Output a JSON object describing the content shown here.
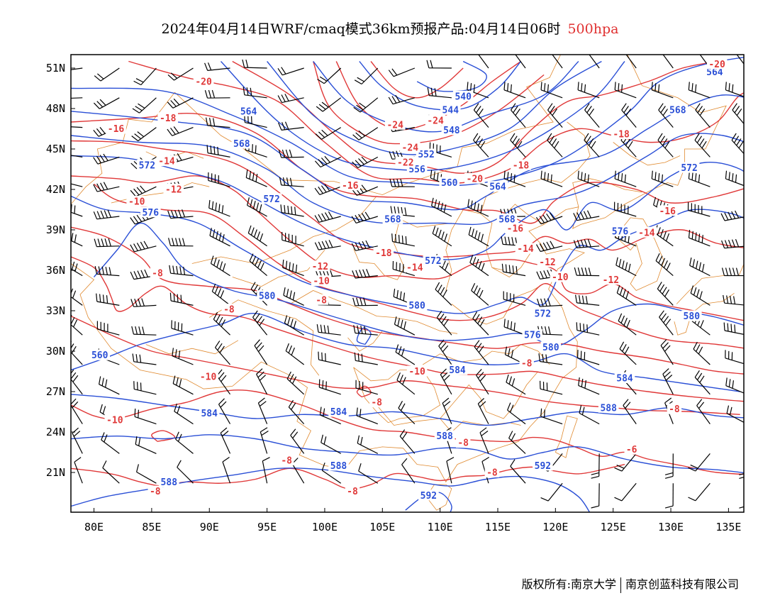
{
  "header": {
    "title": "2024年04月14日WRF/cmaq模式36km预报产品:04月14日06时",
    "level": "500hpa",
    "level_color": "#e03030"
  },
  "map": {
    "lon_labels": [
      "80E",
      "85E",
      "90E",
      "95E",
      "100E",
      "105E",
      "110E",
      "115E",
      "120E",
      "125E",
      "130E",
      "135E"
    ],
    "lat_labels": [
      "51N",
      "48N",
      "45N",
      "42N",
      "39N",
      "36N",
      "33N",
      "30N",
      "27N",
      "24N",
      "21N"
    ],
    "geopotential_color": "#2a4fd6",
    "temperature_color": "#e03838",
    "boundary_color": "#e08a30",
    "wind_color": "#000000",
    "geopotential_contours": [
      {
        "value": "540",
        "label_lon": 112.0,
        "label_lat": 48.9
      },
      {
        "value": "544",
        "label_lon": 110.9,
        "label_lat": 47.9
      },
      {
        "value": "548",
        "label_lon": 111.0,
        "label_lat": 46.4
      },
      {
        "value": "552",
        "label_lon": 108.8,
        "label_lat": 44.6
      },
      {
        "value": "556",
        "label_lon": 108.0,
        "label_lat": 43.5
      },
      {
        "value": "560",
        "label_lon": 110.8,
        "label_lat": 42.5
      },
      {
        "value": "564",
        "label_lon": 93.4,
        "label_lat": 47.8
      },
      {
        "value": "568",
        "label_lon": 92.8,
        "label_lat": 45.4
      },
      {
        "value": "572",
        "label_lon": 84.6,
        "label_lat": 43.8
      },
      {
        "value": "576",
        "label_lon": 84.9,
        "label_lat": 40.3
      },
      {
        "value": "580",
        "label_lon": 95.0,
        "label_lat": 34.1
      },
      {
        "value": "584",
        "label_lon": 90.0,
        "label_lat": 25.4
      },
      {
        "value": "588",
        "label_lon": 86.5,
        "label_lat": 20.3
      },
      {
        "value": "592",
        "label_lon": 109.0,
        "label_lat": 19.3
      }
    ],
    "extra_geopotential_labels": [
      {
        "value": "564",
        "lon": 133.8,
        "lat": 50.7
      },
      {
        "value": "568",
        "lon": 130.6,
        "lat": 47.9
      },
      {
        "value": "572",
        "lon": 131.6,
        "lat": 43.6
      },
      {
        "value": "576",
        "lon": 125.6,
        "lat": 38.9
      },
      {
        "value": "580",
        "lon": 131.8,
        "lat": 32.6
      },
      {
        "value": "584",
        "lon": 126.0,
        "lat": 28.0
      },
      {
        "value": "588",
        "lon": 124.6,
        "lat": 25.8
      },
      {
        "value": "592",
        "lon": 118.9,
        "lat": 21.5
      },
      {
        "value": "572",
        "lon": 95.4,
        "lat": 41.3
      },
      {
        "value": "568",
        "lon": 105.9,
        "lat": 39.8
      },
      {
        "value": "564",
        "lon": 115.0,
        "lat": 42.2
      },
      {
        "value": "568",
        "lon": 115.8,
        "lat": 39.8
      },
      {
        "value": "572",
        "lon": 109.4,
        "lat": 36.7
      },
      {
        "value": "572",
        "lon": 118.9,
        "lat": 32.8
      },
      {
        "value": "576",
        "lon": 118.0,
        "lat": 31.2
      },
      {
        "value": "580",
        "lon": 108.0,
        "lat": 33.4
      },
      {
        "value": "580",
        "lon": 119.6,
        "lat": 30.3
      },
      {
        "value": "584",
        "lon": 111.5,
        "lat": 28.6
      },
      {
        "value": "584",
        "lon": 101.2,
        "lat": 25.5
      },
      {
        "value": "588",
        "lon": 101.2,
        "lat": 21.5
      },
      {
        "value": "588",
        "lon": 110.4,
        "lat": 23.7
      },
      {
        "value": "560",
        "lon": 80.5,
        "lat": 29.7
      }
    ],
    "temperature_labels": [
      {
        "value": "-20",
        "lon": 89.5,
        "lat": 50.0
      },
      {
        "value": "-18",
        "lon": 86.4,
        "lat": 47.3
      },
      {
        "value": "-16",
        "lon": 81.9,
        "lat": 46.5
      },
      {
        "value": "-14",
        "lon": 86.3,
        "lat": 44.1
      },
      {
        "value": "-12",
        "lon": 86.9,
        "lat": 42.0
      },
      {
        "value": "-10",
        "lon": 83.7,
        "lat": 41.1
      },
      {
        "value": "-8",
        "lon": 85.5,
        "lat": 35.8
      },
      {
        "value": "-8",
        "lon": 91.7,
        "lat": 33.1
      },
      {
        "value": "-10",
        "lon": 89.9,
        "lat": 28.1
      },
      {
        "value": "-10",
        "lon": 81.8,
        "lat": 24.9
      },
      {
        "value": "-8",
        "lon": 85.3,
        "lat": 19.6
      },
      {
        "value": "-8",
        "lon": 96.7,
        "lat": 21.9
      },
      {
        "value": "-8",
        "lon": 102.4,
        "lat": 19.6
      },
      {
        "value": "-8",
        "lon": 104.5,
        "lat": 26.2
      },
      {
        "value": "-8",
        "lon": 99.7,
        "lat": 33.8
      },
      {
        "value": "-10",
        "lon": 99.7,
        "lat": 35.2
      },
      {
        "value": "-12",
        "lon": 99.6,
        "lat": 36.3
      },
      {
        "value": "-16",
        "lon": 102.2,
        "lat": 42.3
      },
      {
        "value": "-18",
        "lon": 105.1,
        "lat": 37.3
      },
      {
        "value": "-14",
        "lon": 107.8,
        "lat": 36.2
      },
      {
        "value": "-24",
        "lon": 106.1,
        "lat": 46.8
      },
      {
        "value": "-24",
        "lon": 109.6,
        "lat": 47.1
      },
      {
        "value": "-24",
        "lon": 107.4,
        "lat": 45.1
      },
      {
        "value": "-22",
        "lon": 107.0,
        "lat": 44.0
      },
      {
        "value": "-20",
        "lon": 113.0,
        "lat": 42.8
      },
      {
        "value": "-18",
        "lon": 117.0,
        "lat": 43.8
      },
      {
        "value": "-16",
        "lon": 116.5,
        "lat": 39.1
      },
      {
        "value": "-14",
        "lon": 117.4,
        "lat": 37.6
      },
      {
        "value": "-12",
        "lon": 119.3,
        "lat": 36.6
      },
      {
        "value": "-10",
        "lon": 120.4,
        "lat": 35.5
      },
      {
        "value": "-12",
        "lon": 124.8,
        "lat": 35.3
      },
      {
        "value": "-14",
        "lon": 127.9,
        "lat": 38.8
      },
      {
        "value": "-16",
        "lon": 129.7,
        "lat": 40.4
      },
      {
        "value": "-18",
        "lon": 125.7,
        "lat": 46.1
      },
      {
        "value": "-20",
        "lon": 134.0,
        "lat": 51.3
      },
      {
        "value": "-10",
        "lon": 108.0,
        "lat": 28.5
      },
      {
        "value": "-8",
        "lon": 117.5,
        "lat": 29.1
      },
      {
        "value": "-8",
        "lon": 112.0,
        "lat": 23.2
      },
      {
        "value": "-8",
        "lon": 114.5,
        "lat": 21.0
      },
      {
        "value": "-6",
        "lon": 126.6,
        "lat": 22.7
      },
      {
        "value": "-8",
        "lon": 130.3,
        "lat": 25.7
      }
    ]
  },
  "footer": {
    "left": "版权所有:南京大学",
    "right": "南京创蓝科技有限公司"
  }
}
